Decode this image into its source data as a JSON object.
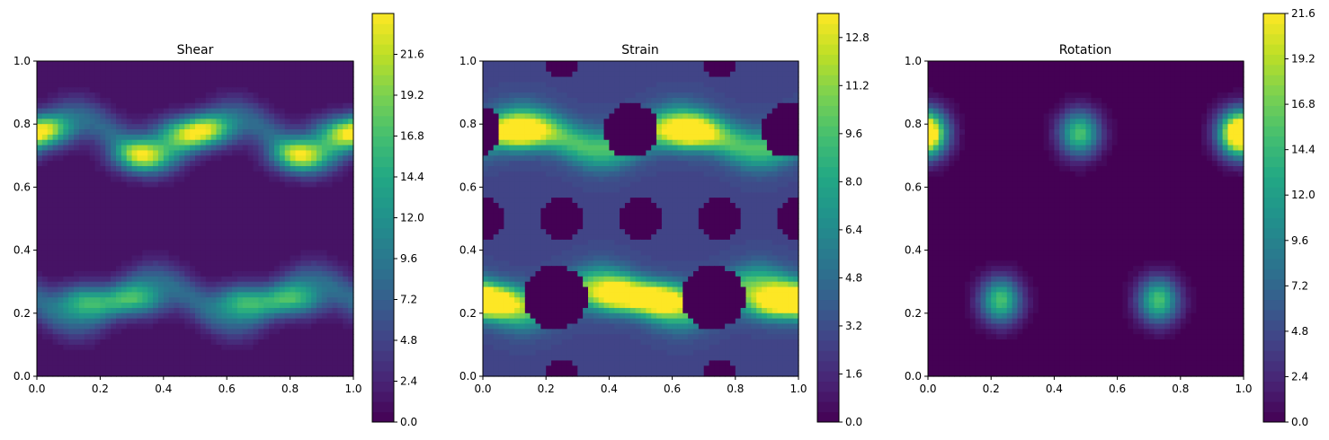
{
  "chart_data": [
    {
      "type": "heatmap",
      "title": "Shear",
      "xlim": [
        0,
        1
      ],
      "ylim": [
        0,
        1
      ],
      "xticks": [
        "0.0",
        "0.2",
        "0.4",
        "0.6",
        "0.8",
        "1.0"
      ],
      "yticks": [
        "0.0",
        "0.2",
        "0.4",
        "0.6",
        "0.8",
        "1.0"
      ],
      "colorbar": {
        "range": [
          0,
          24
        ],
        "ticks": [
          "0.0",
          "2.4",
          "4.8",
          "7.2",
          "9.6",
          "12.0",
          "14.4",
          "16.8",
          "19.2",
          "21.6"
        ],
        "tick_values": [
          0,
          2.4,
          4.8,
          7.2,
          9.6,
          12.0,
          14.4,
          16.8,
          19.2,
          21.6
        ]
      },
      "bands": [
        {
          "center": 0.76,
          "amplitude": 0.06,
          "phase": 0.0
        },
        {
          "center": 0.24,
          "amplitude": 0.06,
          "phase": 0.5
        }
      ],
      "peaks": [
        {
          "x": 0.03,
          "y": 0.78,
          "v": 16
        },
        {
          "x": 0.33,
          "y": 0.7,
          "v": 22
        },
        {
          "x": 0.45,
          "y": 0.77,
          "v": 15
        },
        {
          "x": 0.54,
          "y": 0.78,
          "v": 17
        },
        {
          "x": 0.83,
          "y": 0.7,
          "v": 22
        },
        {
          "x": 0.95,
          "y": 0.77,
          "v": 15
        },
        {
          "x": 0.15,
          "y": 0.24,
          "v": 16
        },
        {
          "x": 0.32,
          "y": 0.24,
          "v": 15
        },
        {
          "x": 0.65,
          "y": 0.24,
          "v": 16
        },
        {
          "x": 0.82,
          "y": 0.24,
          "v": 15
        }
      ],
      "background_value": 1.2
    },
    {
      "type": "heatmap",
      "title": "Strain",
      "xlim": [
        0,
        1
      ],
      "ylim": [
        0,
        1
      ],
      "xticks": [
        "0.0",
        "0.2",
        "0.4",
        "0.6",
        "0.8",
        "1.0"
      ],
      "yticks": [
        "0.0",
        "0.2",
        "0.4",
        "0.6",
        "0.8",
        "1.0"
      ],
      "colorbar": {
        "range": [
          0,
          13.6
        ],
        "ticks": [
          "0.0",
          "1.6",
          "3.2",
          "4.8",
          "6.4",
          "8.0",
          "9.6",
          "11.2",
          "12.8"
        ],
        "tick_values": [
          0,
          1.6,
          3.2,
          4.8,
          6.4,
          8.0,
          9.6,
          11.2,
          12.8
        ]
      },
      "bands": [
        {
          "center": 0.76,
          "amplitude": 0.04,
          "phase": 0.0
        },
        {
          "center": 0.25,
          "amplitude": 0.04,
          "phase": 0.5
        }
      ],
      "peaks": [
        {
          "x": 0.12,
          "y": 0.77,
          "v": 12.5
        },
        {
          "x": 0.65,
          "y": 0.77,
          "v": 12.5
        },
        {
          "x": 0.04,
          "y": 0.24,
          "v": 11
        },
        {
          "x": 0.42,
          "y": 0.25,
          "v": 11
        },
        {
          "x": 0.57,
          "y": 0.25,
          "v": 11
        },
        {
          "x": 0.92,
          "y": 0.23,
          "v": 12.5
        }
      ],
      "holes": [
        {
          "x": 0.47,
          "y": 0.78,
          "r": 0.085
        },
        {
          "x": 0.97,
          "y": 0.78,
          "r": 0.085
        },
        {
          "x": 0.23,
          "y": 0.25,
          "r": 0.1
        },
        {
          "x": 0.73,
          "y": 0.25,
          "r": 0.1
        },
        {
          "x": 0.0,
          "y": 0.5,
          "r": 0.07
        },
        {
          "x": 0.25,
          "y": 0.5,
          "r": 0.07
        },
        {
          "x": 0.5,
          "y": 0.5,
          "r": 0.07
        },
        {
          "x": 0.75,
          "y": 0.5,
          "r": 0.07
        },
        {
          "x": 1.0,
          "y": 0.5,
          "r": 0.07
        },
        {
          "x": 0.25,
          "y": 0.0,
          "r": 0.05
        },
        {
          "x": 0.75,
          "y": 0.0,
          "r": 0.05
        },
        {
          "x": 0.25,
          "y": 1.0,
          "r": 0.05
        },
        {
          "x": 0.75,
          "y": 1.0,
          "r": 0.05
        }
      ],
      "background_value": 3.0
    },
    {
      "type": "heatmap",
      "title": "Rotation",
      "xlim": [
        0,
        1
      ],
      "ylim": [
        0,
        1
      ],
      "xticks": [
        "0.0",
        "0.2",
        "0.4",
        "0.6",
        "0.8",
        "1.0"
      ],
      "yticks": [
        "0.0",
        "0.2",
        "0.4",
        "0.6",
        "0.8",
        "1.0"
      ],
      "colorbar": {
        "range": [
          0,
          21.6
        ],
        "ticks": [
          "0.0",
          "2.4",
          "4.8",
          "7.2",
          "9.6",
          "12.0",
          "14.4",
          "16.8",
          "19.2",
          "21.6"
        ],
        "tick_values": [
          0,
          2.4,
          4.8,
          7.2,
          9.6,
          12.0,
          14.4,
          16.8,
          19.2,
          21.6
        ]
      },
      "peaks": [
        {
          "x": 0.0,
          "y": 0.77,
          "v": 20
        },
        {
          "x": 0.48,
          "y": 0.77,
          "v": 21
        },
        {
          "x": 0.98,
          "y": 0.77,
          "v": 21
        },
        {
          "x": 0.23,
          "y": 0.24,
          "v": 21
        },
        {
          "x": 0.73,
          "y": 0.24,
          "v": 21
        }
      ],
      "background_value": 0
    }
  ]
}
